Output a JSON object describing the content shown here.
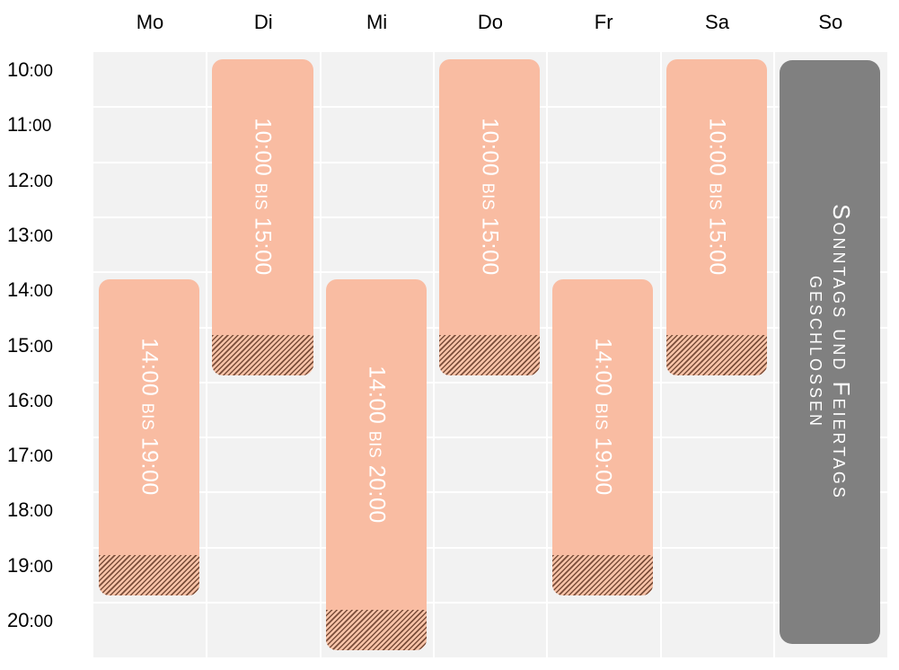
{
  "days": [
    "Mo",
    "Di",
    "Mi",
    "Do",
    "Fr",
    "Sa",
    "So"
  ],
  "hours": [
    {
      "h": "10",
      "m": ":00"
    },
    {
      "h": "11",
      "m": ":00"
    },
    {
      "h": "12",
      "m": ":00"
    },
    {
      "h": "13",
      "m": ":00"
    },
    {
      "h": "14",
      "m": ":00"
    },
    {
      "h": "15",
      "m": ":00"
    },
    {
      "h": "16",
      "m": ":00"
    },
    {
      "h": "17",
      "m": ":00"
    },
    {
      "h": "18",
      "m": ":00"
    },
    {
      "h": "19",
      "m": ":00"
    },
    {
      "h": "20",
      "m": ":00"
    }
  ],
  "colors": {
    "open": "#f9bca2",
    "closed": "#808080",
    "grid": "#f2f2f2",
    "hatch": "#7a4e3a"
  },
  "schedule": [
    {
      "day": "Mo",
      "start_hour": 14,
      "end_hour": 19,
      "hatched_until_hour": 20,
      "label_from": "14:00",
      "label_sep": "bis",
      "label_to": "19:00"
    },
    {
      "day": "Di",
      "start_hour": 10,
      "end_hour": 15,
      "hatched_until_hour": 16,
      "label_from": "10:00",
      "label_sep": "bis",
      "label_to": "15:00"
    },
    {
      "day": "Mi",
      "start_hour": 14,
      "end_hour": 20,
      "hatched_until_hour": 21,
      "label_from": "14:00",
      "label_sep": "bis",
      "label_to": "20:00"
    },
    {
      "day": "Do",
      "start_hour": 10,
      "end_hour": 15,
      "hatched_until_hour": 16,
      "label_from": "10:00",
      "label_sep": "bis",
      "label_to": "15:00"
    },
    {
      "day": "Fr",
      "start_hour": 14,
      "end_hour": 19,
      "hatched_until_hour": 20,
      "label_from": "14:00",
      "label_sep": "bis",
      "label_to": "19:00"
    },
    {
      "day": "Sa",
      "start_hour": 10,
      "end_hour": 15,
      "hatched_until_hour": 16,
      "label_from": "10:00",
      "label_sep": "bis",
      "label_to": "15:00"
    }
  ],
  "closed": {
    "day": "So",
    "line1": "Sonntags und Feiertags",
    "line2": "geschlossen"
  }
}
